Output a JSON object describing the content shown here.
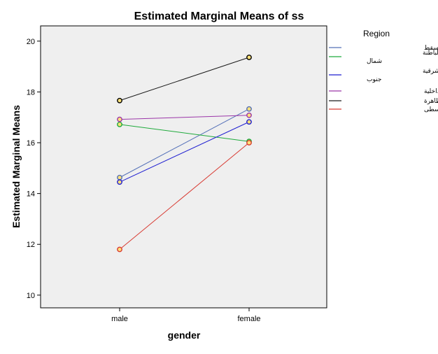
{
  "chart_data": {
    "type": "line",
    "title": "Estimated Marginal Means of ss",
    "xlabel": "gender",
    "ylabel": "Estimated Marginal Means",
    "categories": [
      "male",
      "female"
    ],
    "ylim": [
      9.5,
      20.6
    ],
    "yticks": [
      10,
      12,
      14,
      16,
      18,
      20
    ],
    "grid": false,
    "legend": {
      "title": "Region",
      "placement": "right"
    },
    "series": [
      {
        "name": "محافظة مسقط",
        "values": [
          14.63,
          17.33
        ],
        "color": "#5470b8"
      },
      {
        "name": "محافظة الباطنة جنوب والباطنة شمال",
        "values": [
          16.72,
          16.05
        ],
        "color": "#1faa3c"
      },
      {
        "name": "محافظة الشرقية شمال والشرقية جنوب",
        "values": [
          14.45,
          16.82
        ],
        "color": "#1f1fd1"
      },
      {
        "name": "محافظة الداخلية",
        "values": [
          16.92,
          17.08
        ],
        "color": "#9b36a8"
      },
      {
        "name": "محافظة البريمي و الظاهرة",
        "values": [
          17.66,
          19.36
        ],
        "color": "#1a1a1a"
      },
      {
        "name": "محافظة مسندم وظفار والوسطى",
        "values": [
          11.8,
          16.0
        ],
        "color": "#d83a32"
      }
    ],
    "plot_background": "#efefef",
    "marker_fill": "#ffe27a"
  }
}
